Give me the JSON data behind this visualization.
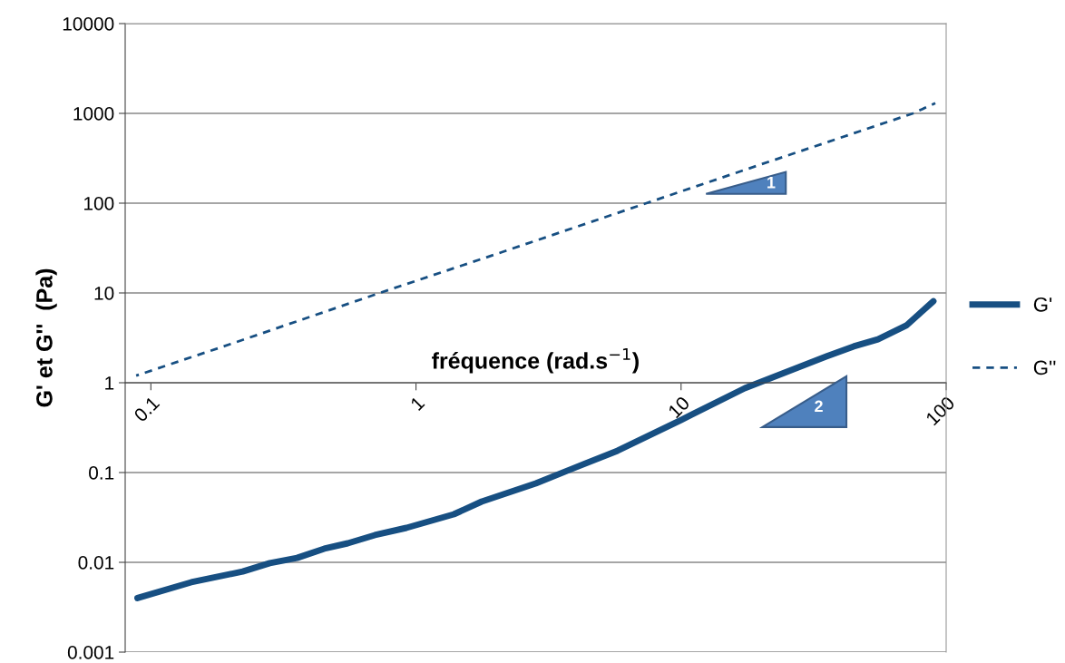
{
  "chart_data": {
    "type": "line",
    "xlabel": "fréquence (rad.s$^{−1}$)",
    "ylabel": "G' et G''  (Pa)",
    "log": "xy",
    "xlim": [
      0.08,
      100
    ],
    "xticks": [
      0.1,
      1,
      10,
      100
    ],
    "ylim": [
      0.001,
      10000
    ],
    "yticks": [
      0.001,
      0.01,
      0.1,
      1,
      10,
      100,
      1000,
      10000
    ],
    "grid": "y",
    "legend": "right",
    "series": [
      {
        "name": "G'",
        "color": "#174f82",
        "line_style": "solid",
        "x": [
          0.089,
          0.142,
          0.222,
          0.281,
          0.356,
          0.451,
          0.553,
          0.7,
          0.92,
          1.39,
          1.77,
          2.83,
          3.88,
          5.76,
          10.0,
          17.4,
          35.3,
          44.8,
          55.3,
          70.7,
          89.5
        ],
        "values": [
          0.004,
          0.006,
          0.0079,
          0.0098,
          0.0112,
          0.0142,
          0.0163,
          0.0201,
          0.0242,
          0.0343,
          0.0475,
          0.0757,
          0.11,
          0.175,
          0.385,
          0.87,
          1.96,
          2.54,
          3.05,
          4.33,
          8.1
        ]
      },
      {
        "name": "G''",
        "color": "#174f82",
        "line_style": "dashed",
        "x": [
          0.088,
          0.2,
          0.73,
          2,
          7.4,
          20,
          75,
          91
        ],
        "values": [
          1.2,
          2.7,
          10,
          27,
          100,
          270,
          1000,
          1300
        ]
      }
    ],
    "annotations": [
      "1",
      "2"
    ]
  }
}
